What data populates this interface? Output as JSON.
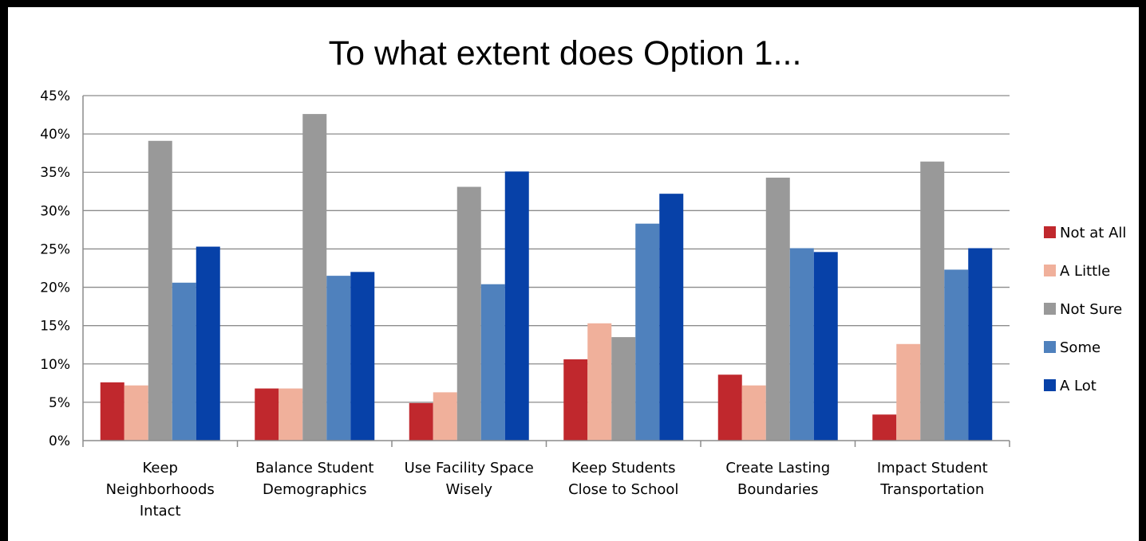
{
  "chart_data": {
    "type": "bar",
    "title": "To what extent does Option 1...",
    "xlabel": "",
    "ylabel": "",
    "ylim": [
      0,
      45
    ],
    "yticks": [
      0,
      5,
      10,
      15,
      20,
      25,
      30,
      35,
      40,
      45
    ],
    "ytick_labels": [
      "0%",
      "5%",
      "10%",
      "15%",
      "20%",
      "25%",
      "30%",
      "35%",
      "40%",
      "45%"
    ],
    "grid": true,
    "legend_position": "right",
    "categories": [
      [
        "Keep",
        "Neighborhoods",
        "Intact"
      ],
      [
        "Balance Student",
        "Demographics"
      ],
      [
        "Use Facility Space",
        "Wisely"
      ],
      [
        "Keep Students",
        "Close to School"
      ],
      [
        "Create Lasting",
        "Boundaries"
      ],
      [
        "Impact Student",
        "Transportation"
      ]
    ],
    "series": [
      {
        "name": "Not at All",
        "color": "#c0282d",
        "values": [
          7.6,
          6.8,
          4.9,
          10.6,
          8.6,
          3.4
        ]
      },
      {
        "name": "A Little",
        "color": "#f0b09b",
        "values": [
          7.2,
          6.8,
          6.3,
          15.3,
          7.2,
          12.6
        ]
      },
      {
        "name": "Not Sure",
        "color": "#999999",
        "values": [
          39.1,
          42.6,
          33.1,
          13.5,
          34.3,
          36.4
        ]
      },
      {
        "name": "Some",
        "color": "#4f81bd",
        "values": [
          20.6,
          21.5,
          20.4,
          28.3,
          25.1,
          22.3
        ]
      },
      {
        "name": "A Lot",
        "color": "#0741a8",
        "values": [
          25.3,
          22.0,
          35.1,
          32.2,
          24.6,
          25.1
        ]
      }
    ]
  }
}
